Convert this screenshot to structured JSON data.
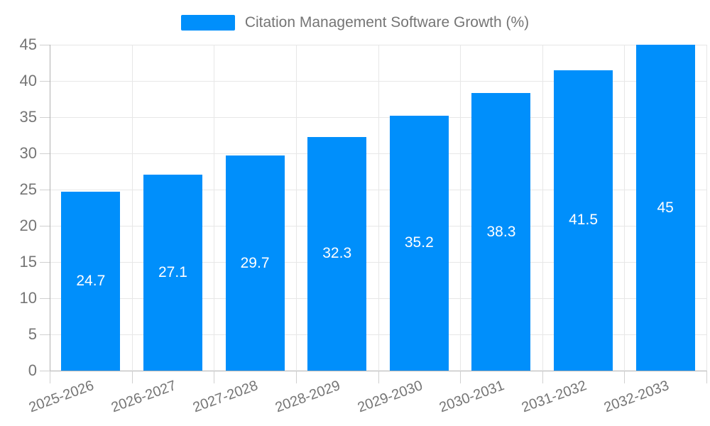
{
  "chart_data": {
    "type": "bar",
    "title": "Citation Management Software Growth (%)",
    "categories": [
      "2025-2026",
      "2026-2027",
      "2027-2028",
      "2028-2029",
      "2029-2030",
      "2030-2031",
      "2031-2032",
      "2032-2033"
    ],
    "values": [
      24.7,
      27.1,
      29.7,
      32.3,
      35.2,
      38.3,
      41.5,
      45
    ],
    "value_labels": [
      "24.7",
      "27.1",
      "29.7",
      "32.3",
      "35.2",
      "38.3",
      "41.5",
      "45"
    ],
    "xlabel": "",
    "ylabel": "",
    "ylim": [
      0,
      45
    ],
    "yticks": [
      0,
      5,
      10,
      15,
      20,
      25,
      30,
      35,
      40,
      45
    ],
    "grid": true,
    "legend_position": "top",
    "colors": {
      "bar": "#008FFB",
      "grid": "#e7e7e7",
      "axis": "#b1b1b1",
      "tick": "#d0d0d0",
      "label": "#757575",
      "value_label": "#ffffff"
    }
  }
}
